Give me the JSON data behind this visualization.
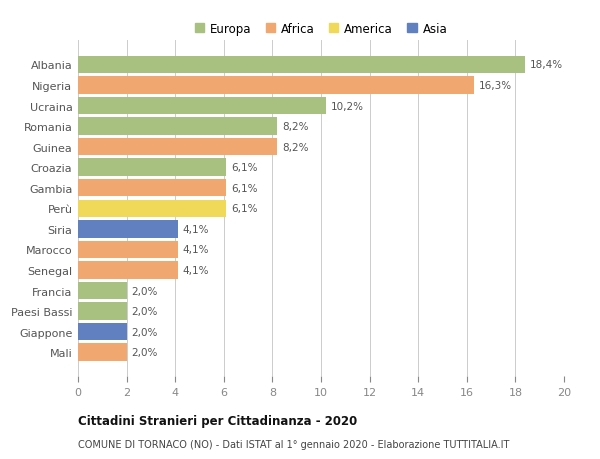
{
  "categories": [
    "Albania",
    "Nigeria",
    "Ucraina",
    "Romania",
    "Guinea",
    "Croazia",
    "Gambia",
    "Perù",
    "Siria",
    "Marocco",
    "Senegal",
    "Francia",
    "Paesi Bassi",
    "Giappone",
    "Mali"
  ],
  "values": [
    18.4,
    16.3,
    10.2,
    8.2,
    8.2,
    6.1,
    6.1,
    6.1,
    4.1,
    4.1,
    4.1,
    2.0,
    2.0,
    2.0,
    2.0
  ],
  "labels": [
    "18,4%",
    "16,3%",
    "10,2%",
    "8,2%",
    "8,2%",
    "6,1%",
    "6,1%",
    "6,1%",
    "4,1%",
    "4,1%",
    "4,1%",
    "2,0%",
    "2,0%",
    "2,0%",
    "2,0%"
  ],
  "continent": [
    "Europa",
    "Africa",
    "Europa",
    "Europa",
    "Africa",
    "Europa",
    "Africa",
    "America",
    "Asia",
    "Africa",
    "Africa",
    "Europa",
    "Europa",
    "Asia",
    "Africa"
  ],
  "colors": {
    "Europa": "#a8c080",
    "Africa": "#f0a870",
    "America": "#f0d858",
    "Asia": "#6080c0"
  },
  "legend_order": [
    "Europa",
    "Africa",
    "America",
    "Asia"
  ],
  "title": "Cittadini Stranieri per Cittadinanza - 2020",
  "subtitle": "COMUNE DI TORNACO (NO) - Dati ISTAT al 1° gennaio 2020 - Elaborazione TUTTITALIA.IT",
  "xlim": [
    0,
    20
  ],
  "xticks": [
    0,
    2,
    4,
    6,
    8,
    10,
    12,
    14,
    16,
    18,
    20
  ],
  "background_color": "#ffffff",
  "grid_color": "#cccccc"
}
